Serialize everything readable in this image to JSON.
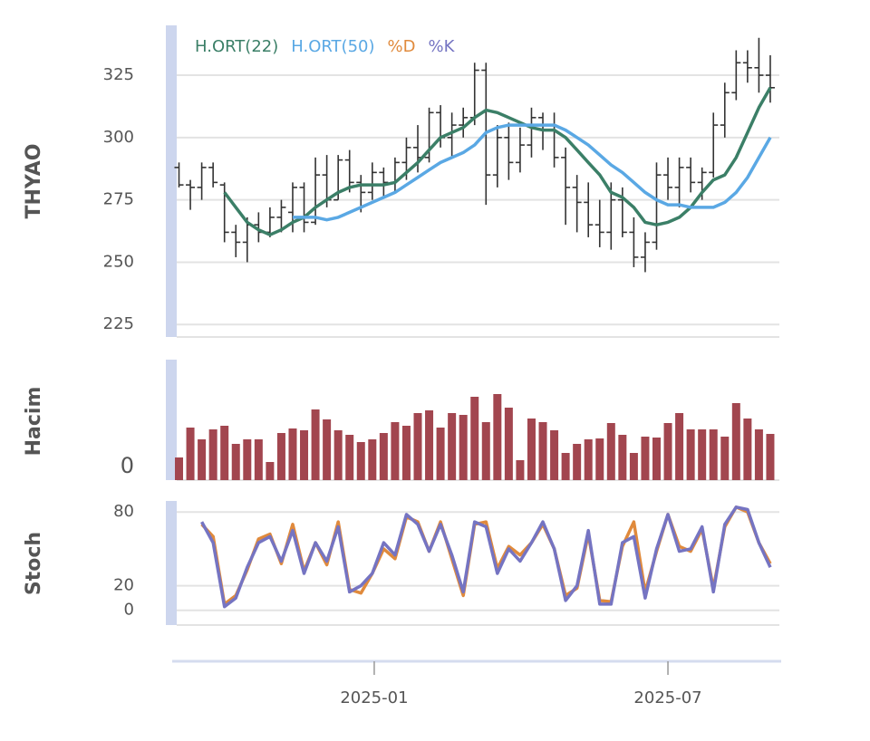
{
  "chart_data": [
    {
      "type": "ohlc",
      "ylabel": "THYAO",
      "ylim": [
        220,
        345
      ],
      "yticks": [
        225,
        250,
        275,
        300,
        325
      ],
      "grid": true,
      "color": "#333333",
      "open": [
        288,
        281,
        280,
        288,
        281,
        262,
        258,
        265,
        262,
        268,
        270,
        280,
        266,
        285,
        275,
        291,
        282,
        278,
        286,
        282,
        290,
        296,
        292,
        310,
        300,
        305,
        308,
        327,
        285,
        300,
        290,
        297,
        308,
        305,
        292,
        280,
        274,
        265,
        262,
        275,
        262,
        252,
        258,
        285,
        280,
        288,
        282,
        286,
        305,
        318,
        330,
        328,
        325
      ],
      "high": [
        290,
        283,
        290,
        290,
        282,
        265,
        268,
        270,
        272,
        275,
        282,
        282,
        292,
        293,
        293,
        295,
        285,
        290,
        288,
        292,
        300,
        305,
        312,
        313,
        310,
        312,
        330,
        330,
        305,
        306,
        304,
        312,
        310,
        310,
        296,
        285,
        282,
        275,
        282,
        280,
        268,
        262,
        290,
        292,
        292,
        292,
        288,
        310,
        322,
        335,
        335,
        340,
        333
      ],
      "low": [
        280,
        271,
        275,
        280,
        258,
        252,
        250,
        258,
        260,
        262,
        262,
        262,
        265,
        272,
        275,
        278,
        270,
        275,
        276,
        278,
        283,
        286,
        290,
        296,
        292,
        300,
        305,
        273,
        280,
        283,
        286,
        292,
        295,
        288,
        265,
        262,
        260,
        256,
        255,
        260,
        248,
        246,
        255,
        275,
        272,
        278,
        275,
        284,
        300,
        315,
        322,
        318,
        314
      ],
      "close": [
        281,
        280,
        288,
        282,
        262,
        258,
        265,
        262,
        268,
        272,
        280,
        266,
        285,
        275,
        291,
        282,
        278,
        286,
        282,
        290,
        296,
        292,
        310,
        300,
        305,
        308,
        327,
        285,
        300,
        290,
        297,
        308,
        305,
        292,
        280,
        274,
        265,
        262,
        275,
        262,
        252,
        258,
        285,
        280,
        288,
        282,
        286,
        305,
        318,
        330,
        328,
        325,
        320
      ],
      "series": [
        {
          "name": "H.ORT(22)",
          "color": "#3b7f67",
          "values": [
            null,
            null,
            null,
            null,
            278,
            272,
            266,
            263,
            261,
            263,
            266,
            268,
            272,
            275,
            278,
            280,
            281,
            281,
            281,
            282,
            286,
            290,
            295,
            300,
            302,
            304,
            308,
            311,
            310,
            308,
            306,
            304,
            303,
            303,
            300,
            295,
            290,
            285,
            278,
            276,
            272,
            266,
            265,
            266,
            268,
            272,
            278,
            283,
            285,
            292,
            302,
            312,
            320
          ]
        },
        {
          "name": "H.ORT(50)",
          "color": "#5aa8e4",
          "values": [
            null,
            null,
            null,
            null,
            null,
            null,
            null,
            null,
            null,
            null,
            268,
            268,
            268,
            267,
            268,
            270,
            272,
            274,
            276,
            278,
            281,
            284,
            287,
            290,
            292,
            294,
            297,
            302,
            304,
            305,
            305,
            305,
            305,
            305,
            303,
            300,
            297,
            293,
            289,
            286,
            282,
            278,
            275,
            273,
            273,
            272,
            272,
            272,
            274,
            278,
            284,
            292,
            300
          ]
        }
      ]
    },
    {
      "type": "bar",
      "ylabel": "Hacim",
      "ylim": [
        0,
        133
      ],
      "yticks": [
        0
      ],
      "color": "#a2464f",
      "values": [
        25,
        58,
        45,
        56,
        60,
        40,
        45,
        45,
        20,
        52,
        57,
        55,
        78,
        67,
        55,
        50,
        42,
        45,
        52,
        64,
        60,
        74,
        77,
        58,
        74,
        72,
        92,
        64,
        95,
        80,
        22,
        68,
        64,
        55,
        30,
        40,
        45,
        46,
        63,
        50,
        30,
        48,
        47,
        63,
        74,
        56,
        56,
        56,
        48,
        85,
        68,
        56,
        51
      ]
    },
    {
      "type": "line",
      "ylabel": "Stoch",
      "ylim": [
        -12,
        89
      ],
      "yticks": [
        0,
        20,
        80
      ],
      "grid": true,
      "xlim": [
        -0.2,
        52.8
      ],
      "xticks": [
        {
          "value": 17.17,
          "label": "2025-01"
        },
        {
          "value": 43.0,
          "label": "2025-07"
        }
      ],
      "series": [
        {
          "name": "%D",
          "color": "#e08a3c",
          "values": [
            null,
            null,
            70,
            60,
            5,
            12,
            33,
            58,
            62,
            38,
            70,
            32,
            55,
            37,
            72,
            17,
            14,
            30,
            50,
            42,
            76,
            72,
            48,
            72,
            42,
            12,
            70,
            72,
            34,
            52,
            45,
            55,
            70,
            50,
            12,
            18,
            62,
            8,
            7,
            52,
            72,
            15,
            48,
            78,
            52,
            48,
            66,
            18,
            68,
            84,
            80,
            55,
            38
          ]
        },
        {
          "name": "%K",
          "color": "#7574c2",
          "values": [
            null,
            null,
            72,
            55,
            3,
            10,
            35,
            55,
            60,
            40,
            65,
            30,
            55,
            40,
            68,
            15,
            20,
            30,
            55,
            45,
            78,
            70,
            48,
            70,
            45,
            15,
            72,
            68,
            30,
            50,
            40,
            55,
            72,
            50,
            8,
            20,
            65,
            5,
            5,
            55,
            60,
            10,
            50,
            78,
            48,
            50,
            68,
            15,
            70,
            84,
            82,
            55,
            35
          ]
        }
      ]
    }
  ]
}
